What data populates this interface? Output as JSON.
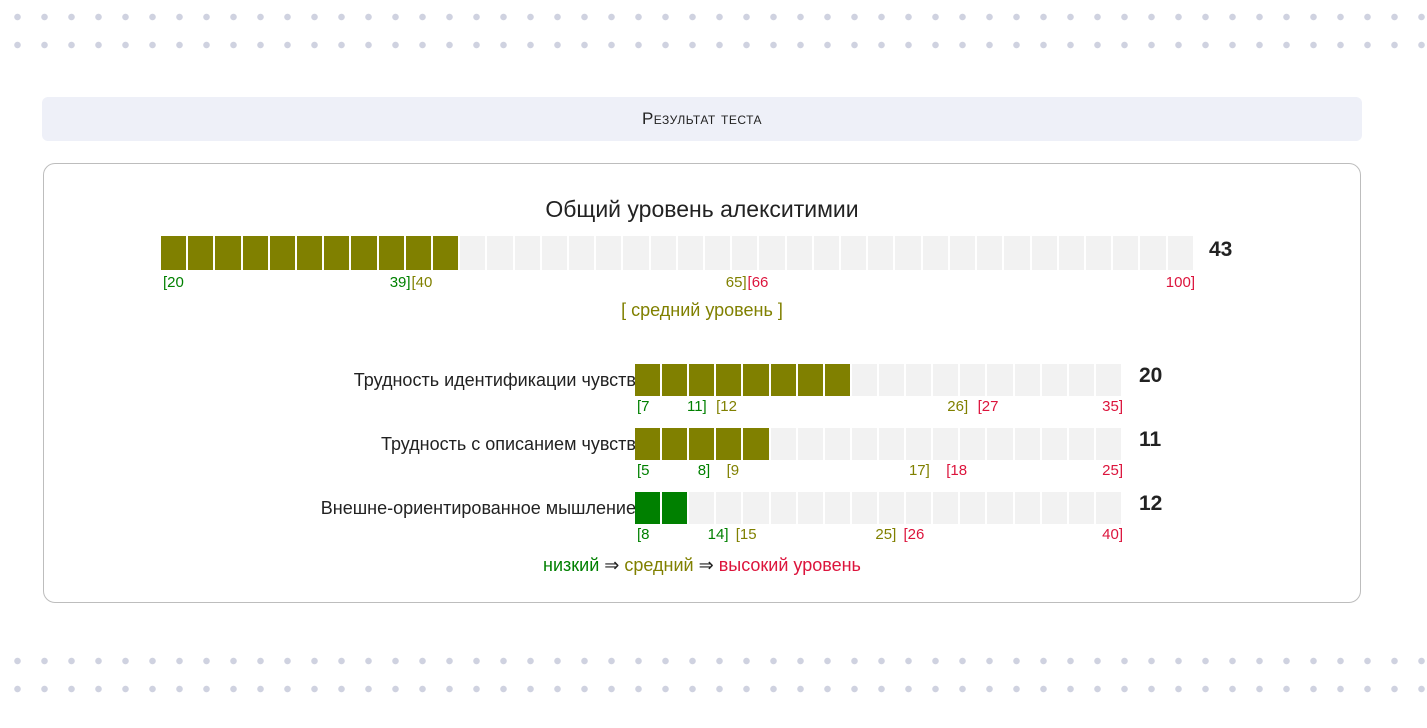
{
  "header": {
    "title": "Результат теста"
  },
  "main": {
    "title": "Общий уровень алекситимии",
    "min": 20,
    "max": 100,
    "score": 43,
    "score_label": "43",
    "level_class": "mid",
    "ticks": [
      {
        "text": "[20",
        "value": 20,
        "cls": "c-low"
      },
      {
        "text": "39]",
        "value": 39,
        "cls": "c-low"
      },
      {
        "text": "[40",
        "value": 40,
        "cls": "c-mid"
      },
      {
        "text": "65]",
        "value": 65,
        "cls": "c-mid"
      },
      {
        "text": "[66",
        "value": 66,
        "cls": "c-high"
      },
      {
        "text": "100]",
        "value": 100,
        "cls": "c-high"
      }
    ],
    "level_text": "[ средний уровень ]"
  },
  "subscales": [
    {
      "label": "Трудность идентификации чувств",
      "min": 7,
      "max": 35,
      "score": 20,
      "score_label": "20",
      "level_class": "mid",
      "ticks": [
        {
          "text": "[7",
          "cls": "c-low"
        },
        {
          "text": "11]",
          "cls": "c-low"
        },
        {
          "text": "[12",
          "cls": "c-mid"
        },
        {
          "text": "26]",
          "cls": "c-mid"
        },
        {
          "text": "[27",
          "cls": "c-high"
        },
        {
          "text": "35]",
          "cls": "c-high"
        }
      ]
    },
    {
      "label": "Трудность с описанием чувств",
      "min": 5,
      "max": 25,
      "score": 11,
      "score_label": "11",
      "level_class": "mid",
      "ticks": [
        {
          "text": "[5",
          "cls": "c-low"
        },
        {
          "text": "8]",
          "cls": "c-low"
        },
        {
          "text": "[9",
          "cls": "c-mid"
        },
        {
          "text": "17]",
          "cls": "c-mid"
        },
        {
          "text": "[18",
          "cls": "c-high"
        },
        {
          "text": "25]",
          "cls": "c-high"
        }
      ]
    },
    {
      "label": "Внешне-ориентированное мышление",
      "min": 8,
      "max": 40,
      "score": 12,
      "score_label": "12",
      "level_class": "low",
      "ticks": [
        {
          "text": "[8",
          "cls": "c-low"
        },
        {
          "text": "14]",
          "cls": "c-low"
        },
        {
          "text": "[15",
          "cls": "c-mid"
        },
        {
          "text": "25]",
          "cls": "c-mid"
        },
        {
          "text": "[26",
          "cls": "c-high"
        },
        {
          "text": "40]",
          "cls": "c-high"
        }
      ]
    }
  ],
  "legend": {
    "low": "низкий",
    "arrow": "⇒",
    "mid": "средний",
    "high": "высокий уровень"
  },
  "colors": {
    "low": "#008000",
    "mid": "#808000",
    "high": "#dc143c",
    "empty": "#f2f2f2"
  }
}
